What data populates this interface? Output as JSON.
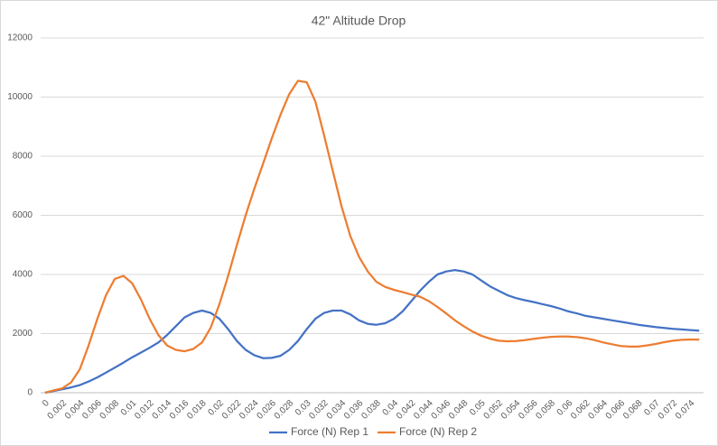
{
  "chart_data": {
    "type": "line",
    "title": "42\" Altitude Drop",
    "categories": [
      "0",
      null,
      "0.002",
      null,
      "0.004",
      null,
      "0.006",
      null,
      "0.008",
      null,
      "0.01",
      null,
      "0.012",
      null,
      "0.014",
      null,
      "0.016",
      null,
      "0.018",
      null,
      "0.02",
      null,
      "0.022",
      null,
      "0.024",
      null,
      "0.026",
      null,
      "0.028",
      null,
      "0.03",
      null,
      "0.032",
      null,
      "0.034",
      null,
      "0.036",
      null,
      "0.038",
      null,
      "0.04",
      null,
      "0.042",
      null,
      "0.044",
      null,
      "0.046",
      null,
      "0.048",
      null,
      "0.05",
      null,
      "0.052",
      null,
      "0.054",
      null,
      "0.056",
      null,
      "0.058",
      null,
      "0.06",
      null,
      "0.062",
      null,
      "0.064",
      null,
      "0.066",
      null,
      "0.068",
      null,
      "0.07",
      null,
      "0.072",
      null,
      "0.074",
      null
    ],
    "series": [
      {
        "name": "Force (N) Rep 1",
        "color": "#4472c4",
        "values": [
          0,
          60,
          120,
          180,
          260,
          380,
          520,
          680,
          850,
          1020,
          1200,
          1360,
          1520,
          1700,
          1950,
          2250,
          2550,
          2700,
          2780,
          2700,
          2500,
          2150,
          1750,
          1450,
          1270,
          1170,
          1180,
          1250,
          1450,
          1750,
          2150,
          2500,
          2700,
          2780,
          2780,
          2650,
          2450,
          2330,
          2300,
          2350,
          2500,
          2750,
          3100,
          3450,
          3750,
          4000,
          4100,
          4150,
          4100,
          4000,
          3800,
          3600,
          3450,
          3300,
          3200,
          3130,
          3070,
          3000,
          2930,
          2850,
          2750,
          2680,
          2600,
          2550,
          2500,
          2450,
          2400,
          2350,
          2300,
          2260,
          2220,
          2190,
          2160,
          2140,
          2120,
          2100
        ]
      },
      {
        "name": "Force (N) Rep 2",
        "color": "#ed7d31",
        "values": [
          0,
          80,
          150,
          350,
          800,
          1600,
          2500,
          3300,
          3850,
          3950,
          3700,
          3150,
          2500,
          1950,
          1600,
          1450,
          1400,
          1480,
          1700,
          2200,
          3000,
          3950,
          5000,
          6000,
          6900,
          7750,
          8600,
          9400,
          10100,
          10550,
          10500,
          9850,
          8700,
          7500,
          6300,
          5300,
          4600,
          4100,
          3750,
          3580,
          3480,
          3400,
          3320,
          3250,
          3100,
          2900,
          2680,
          2450,
          2250,
          2070,
          1930,
          1830,
          1760,
          1740,
          1750,
          1780,
          1820,
          1860,
          1890,
          1900,
          1900,
          1880,
          1840,
          1780,
          1700,
          1640,
          1580,
          1560,
          1560,
          1600,
          1650,
          1710,
          1760,
          1790,
          1800,
          1800
        ]
      }
    ],
    "ylim": [
      0,
      12000
    ],
    "yticks": [
      0,
      2000,
      4000,
      6000,
      8000,
      10000,
      12000
    ],
    "grid": true,
    "legend": "bottom"
  }
}
